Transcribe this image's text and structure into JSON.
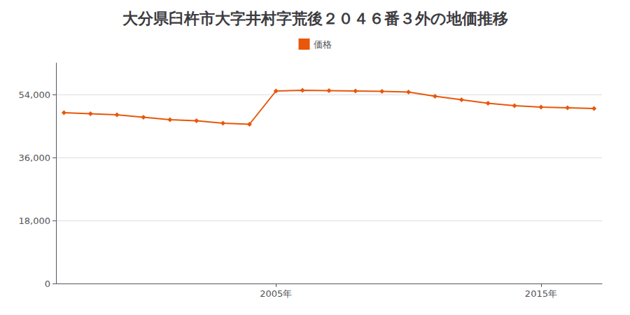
{
  "chart_data": {
    "type": "line",
    "title": "大分県臼杵市大字井村字荒後２０４６番３外の地価推移",
    "x": [
      1997,
      1998,
      1999,
      2000,
      2001,
      2002,
      2003,
      2004,
      2005,
      2006,
      2007,
      2008,
      2009,
      2010,
      2011,
      2012,
      2013,
      2014,
      2015,
      2016,
      2017
    ],
    "series": [
      {
        "name": "価格",
        "color": "#e8570a",
        "marker": "diamond",
        "line_style": "solid",
        "values": [
          48800,
          48500,
          48200,
          47500,
          46800,
          46500,
          45800,
          45500,
          55000,
          55200,
          55100,
          55000,
          54900,
          54700,
          53500,
          52500,
          51500,
          50800,
          50400,
          50200,
          50000
        ]
      }
    ],
    "xlim": [
      1996.7,
      2017.3
    ],
    "xticks": [
      {
        "value": 2005,
        "label": "2005年"
      },
      {
        "value": 2015,
        "label": "2015年"
      }
    ],
    "ylim": [
      0,
      63000
    ],
    "yticks": [
      0,
      {
        "value": 18000,
        "label": "18,000"
      },
      {
        "value": 36000,
        "label": "36,000"
      },
      {
        "value": 54000,
        "label": "54,000"
      }
    ],
    "grid": true,
    "legend": "upper center"
  }
}
